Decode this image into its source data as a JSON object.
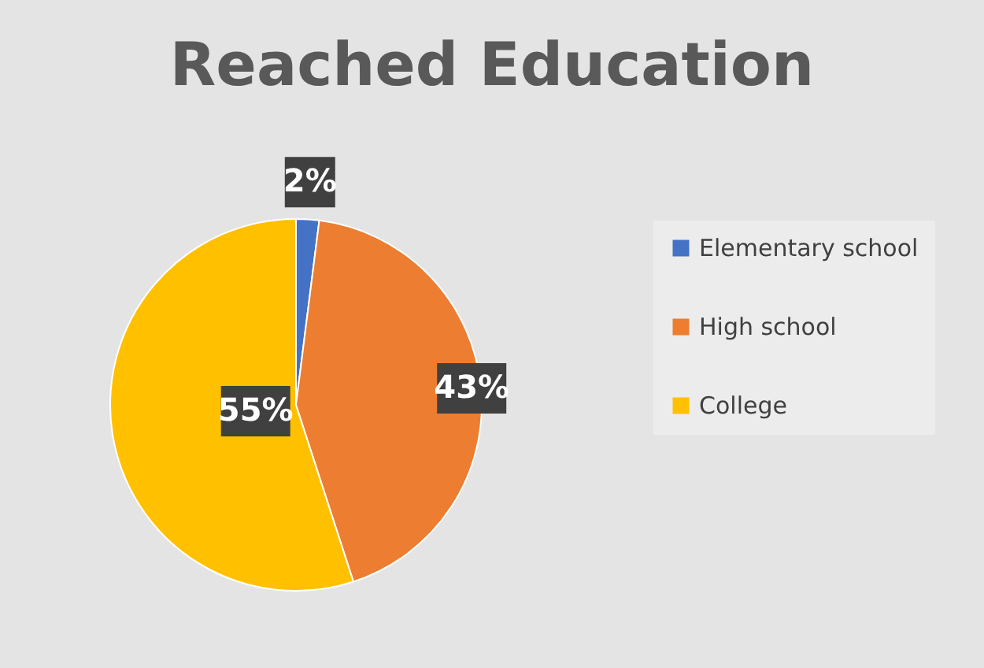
{
  "chart_data": {
    "type": "pie",
    "title": "Reached Education",
    "categories": [
      "Elementary school",
      "High school",
      "College"
    ],
    "values": [
      2,
      43,
      55
    ],
    "colors": [
      "#4472c4",
      "#ed7d31",
      "#ffc000"
    ],
    "value_labels": [
      "2%",
      "43%",
      "55%"
    ],
    "legend": "right"
  }
}
